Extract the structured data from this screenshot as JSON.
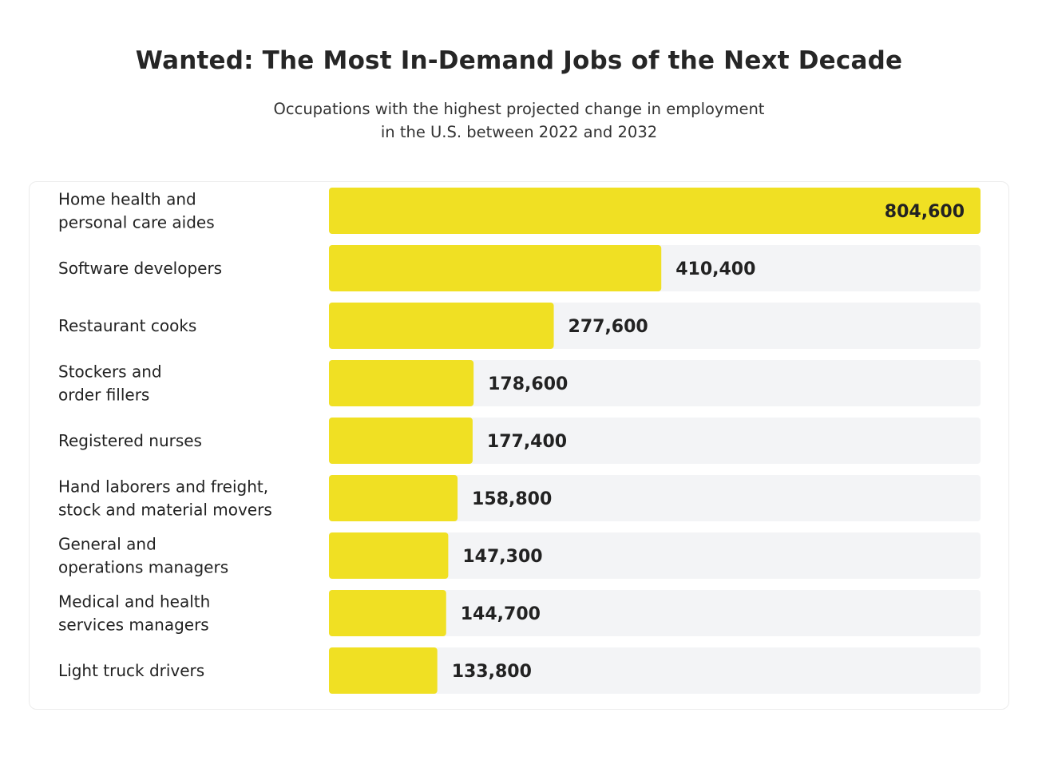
{
  "title": "Wanted: The Most In-Demand Jobs of the Next Decade",
  "subtitle_lines": [
    "Occupations with the highest projected change in employment",
    "in the U.S. between 2022 and 2032"
  ],
  "colors": {
    "bar": "#f0e023",
    "track": "#f3f4f6",
    "text": "#222222"
  },
  "chart_data": {
    "type": "bar",
    "orientation": "horizontal",
    "title": "Wanted: The Most In-Demand Jobs of the Next Decade",
    "subtitle": "Occupations with the highest projected change in employment in the U.S. between 2022 and 2032",
    "categories": [
      [
        "Home health and",
        "personal care aides"
      ],
      [
        "Software developers"
      ],
      [
        "Restaurant cooks"
      ],
      [
        "Stockers and",
        "order fillers"
      ],
      [
        "Registered nurses"
      ],
      [
        "Hand laborers and freight,",
        "stock and material movers"
      ],
      [
        "General and",
        "operations managers"
      ],
      [
        "Medical and health",
        "services managers"
      ],
      [
        "Light truck drivers"
      ]
    ],
    "values": [
      804600,
      410400,
      277600,
      178600,
      177400,
      158800,
      147300,
      144700,
      133800
    ],
    "value_labels": [
      "804,600",
      "410,400",
      "277,600",
      "178,600",
      "177,400",
      "158,800",
      "147,300",
      "144,700",
      "133,800"
    ],
    "xlim": [
      0,
      804600
    ],
    "grid": false,
    "legend": "none"
  }
}
